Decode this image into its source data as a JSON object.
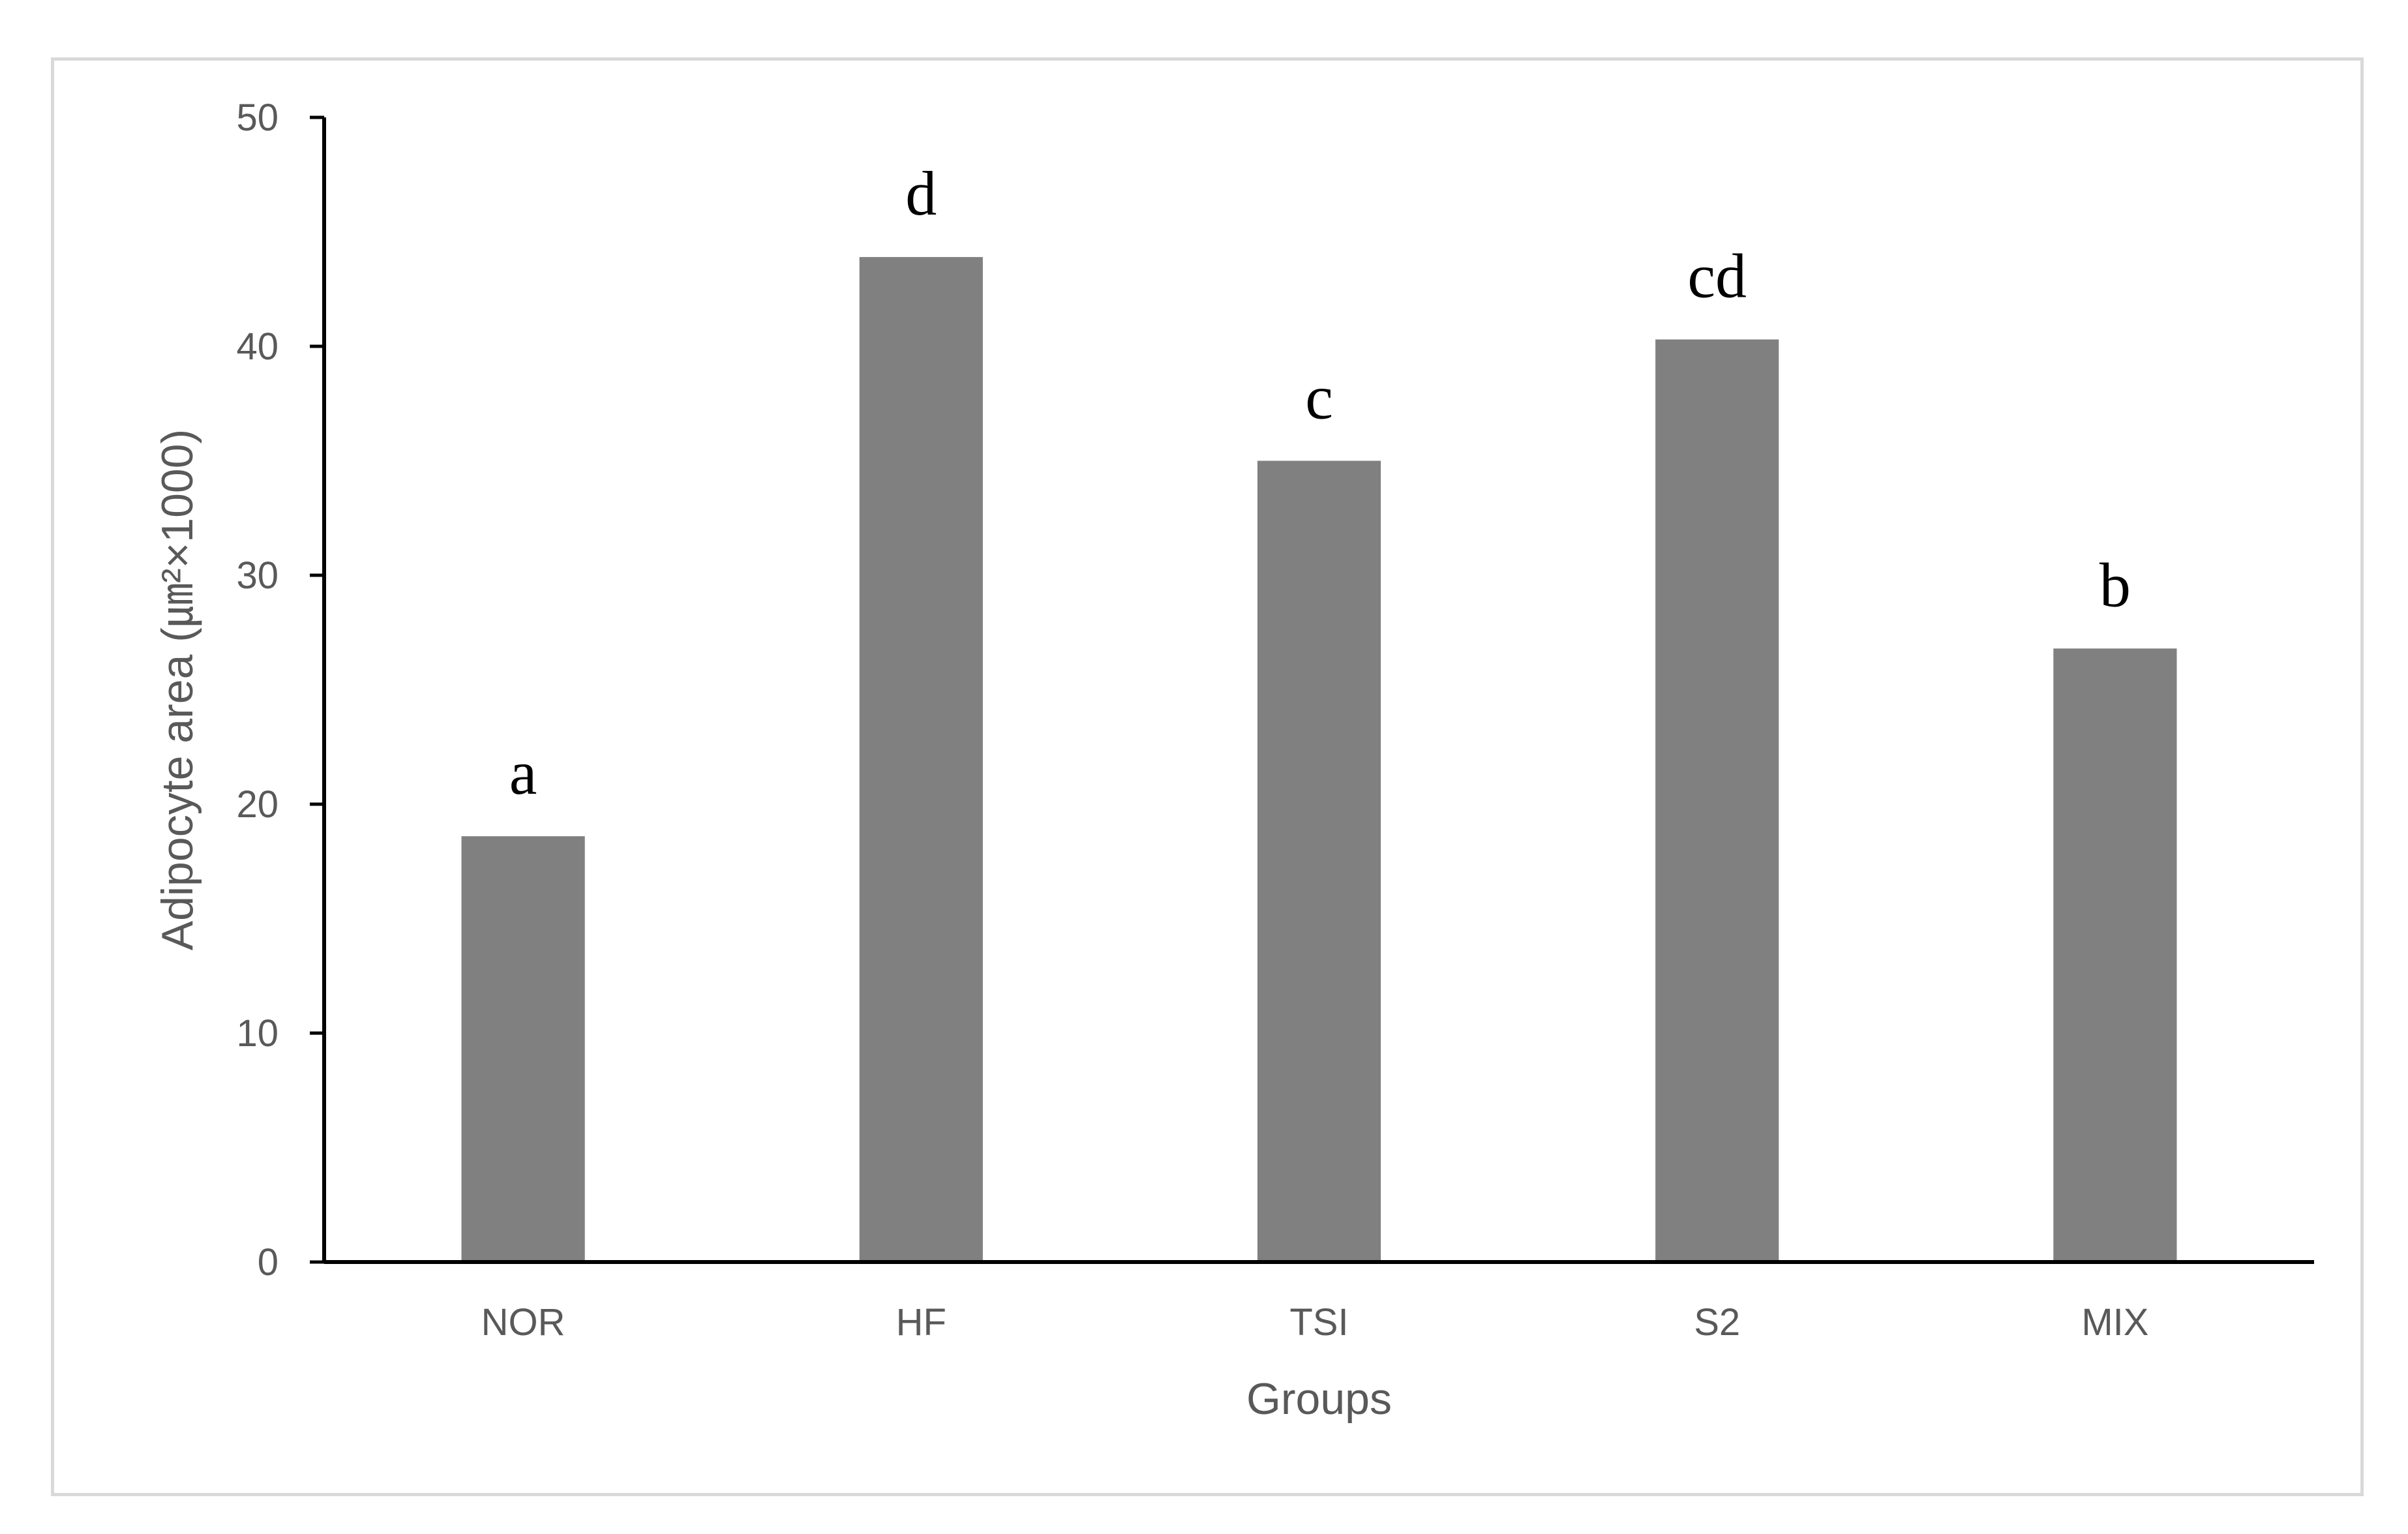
{
  "chart_data": {
    "type": "bar",
    "categories": [
      "NOR",
      "HF",
      "TSI",
      "S2",
      "MIX"
    ],
    "values": [
      18.6,
      43.9,
      35.0,
      40.3,
      26.8
    ],
    "annotations": [
      "a",
      "d",
      "c",
      "cd",
      "b"
    ],
    "xlabel": "Groups",
    "ylabel": "Adipocyte area (㎛²×1000)",
    "ylim": [
      0,
      50
    ],
    "yticks": [
      0,
      10,
      20,
      30,
      40,
      50
    ],
    "grid": false,
    "legend": "none",
    "colors": {
      "bar": "#808080",
      "axis": "#000000",
      "text": "#595959"
    }
  }
}
